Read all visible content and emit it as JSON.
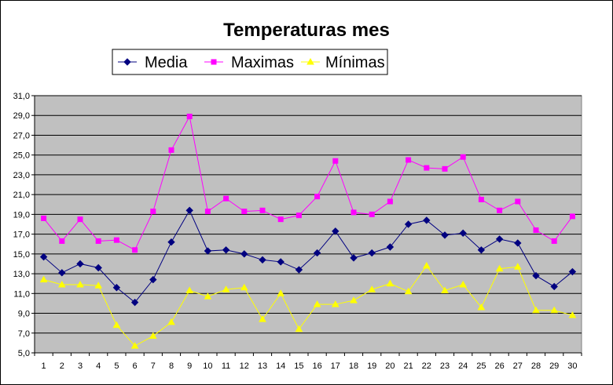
{
  "chart_data": {
    "type": "line",
    "title": "Temperaturas mes",
    "xlabel": "",
    "ylabel": "",
    "x": [
      1,
      2,
      3,
      4,
      5,
      6,
      7,
      8,
      9,
      10,
      11,
      12,
      13,
      14,
      15,
      16,
      17,
      18,
      19,
      20,
      21,
      22,
      23,
      24,
      25,
      26,
      27,
      28,
      29,
      30
    ],
    "y_ticks": [
      "5,0",
      "7,0",
      "9,0",
      "11,0",
      "13,0",
      "15,0",
      "17,0",
      "19,0",
      "21,0",
      "23,0",
      "25,0",
      "27,0",
      "29,0",
      "31,0"
    ],
    "ylim": [
      5,
      31
    ],
    "grid": true,
    "legend_position": "top",
    "plot_background": "#c0c0c0",
    "series": [
      {
        "name": "Media",
        "color": "#000080",
        "marker": "diamond",
        "values": [
          14.7,
          13.1,
          14.0,
          13.6,
          11.6,
          10.1,
          12.4,
          16.2,
          19.4,
          15.3,
          15.4,
          15.0,
          14.4,
          14.2,
          13.4,
          15.1,
          17.3,
          14.6,
          15.1,
          15.7,
          18.0,
          18.4,
          16.9,
          17.1,
          15.4,
          16.5,
          16.1,
          12.8,
          11.7,
          13.2
        ]
      },
      {
        "name": "Maximas",
        "color": "#ff00ff",
        "marker": "square",
        "values": [
          18.6,
          16.3,
          18.5,
          16.3,
          16.4,
          15.4,
          19.3,
          25.5,
          28.9,
          19.3,
          20.6,
          19.3,
          19.4,
          18.5,
          18.9,
          20.8,
          24.4,
          19.2,
          19.0,
          20.3,
          24.5,
          23.7,
          23.6,
          24.8,
          20.5,
          19.4,
          20.3,
          17.4,
          16.3,
          18.8
        ]
      },
      {
        "name": "Mínimas",
        "color": "#ffff00",
        "marker": "triangle",
        "values": [
          12.4,
          11.9,
          11.9,
          11.8,
          7.8,
          5.7,
          6.7,
          8.1,
          11.3,
          10.7,
          11.4,
          11.6,
          8.4,
          11.0,
          7.4,
          9.9,
          9.9,
          10.3,
          11.4,
          12.0,
          11.2,
          13.8,
          11.3,
          11.9,
          9.6,
          13.5,
          13.7,
          9.3,
          9.3,
          8.8
        ]
      }
    ]
  }
}
